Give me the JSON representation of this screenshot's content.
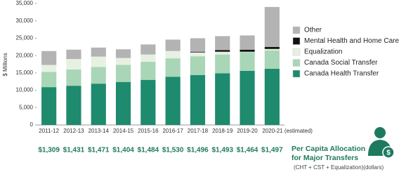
{
  "chart_data": {
    "type": "stacked-bar",
    "y_label": "$ Millions",
    "categories": [
      "2011-12",
      "2012-13",
      "2013-14",
      "2014-15",
      "2015-16",
      "2016-17",
      "2017-18",
      "2018-19",
      "2019-20",
      "2020-21 (estimated)"
    ],
    "series": [
      {
        "name": "Canada Health Transfer",
        "color": "#1e8a6e",
        "values": [
          10900,
          11300,
          11900,
          12400,
          13000,
          13900,
          14400,
          14900,
          15600,
          16200
        ]
      },
      {
        "name": "Canada Social Transfer",
        "color": "#a9d6b6",
        "values": [
          4400,
          4700,
          4800,
          4900,
          5200,
          5300,
          5400,
          5400,
          5400,
          5300
        ]
      },
      {
        "name": "Equalization",
        "color": "#e6f1e1",
        "values": [
          2000,
          3000,
          3000,
          2000,
          2100,
          2100,
          1100,
          800,
          100,
          400
        ]
      },
      {
        "name": "Mental Health and Home Care",
        "color": "#111111",
        "values": [
          0,
          0,
          0,
          0,
          0,
          0,
          200,
          500,
          600,
          600
        ]
      },
      {
        "name": "Other",
        "color": "#b3b3b3",
        "values": [
          4000,
          2700,
          2600,
          2500,
          2900,
          3300,
          3900,
          4000,
          4100,
          11500
        ]
      }
    ],
    "ylim": [
      0,
      35000
    ],
    "yticks": [
      0,
      {
        "value": 5000,
        "label": "5,000"
      },
      {
        "value": 10000,
        "label": "10,000"
      },
      {
        "value": 15000,
        "label": "15,000"
      },
      {
        "value": 20000,
        "label": "20,000"
      },
      {
        "value": 25000,
        "label": "25,000"
      },
      {
        "value": 30000,
        "label": "30,000"
      },
      {
        "value": 35000,
        "label": "35,000"
      }
    ]
  },
  "per_capita": {
    "title_lines": [
      "Per Capita Allocation",
      "for Major Transfers"
    ],
    "note": "(CHT + CST + Equalization)(dollars)",
    "labels": [
      "$1,309",
      "$1,431",
      "$1,471",
      "$1,404",
      "$1,484",
      "$1,530",
      "$1,496",
      "$1,493",
      "$1,464",
      "$1,497"
    ]
  }
}
